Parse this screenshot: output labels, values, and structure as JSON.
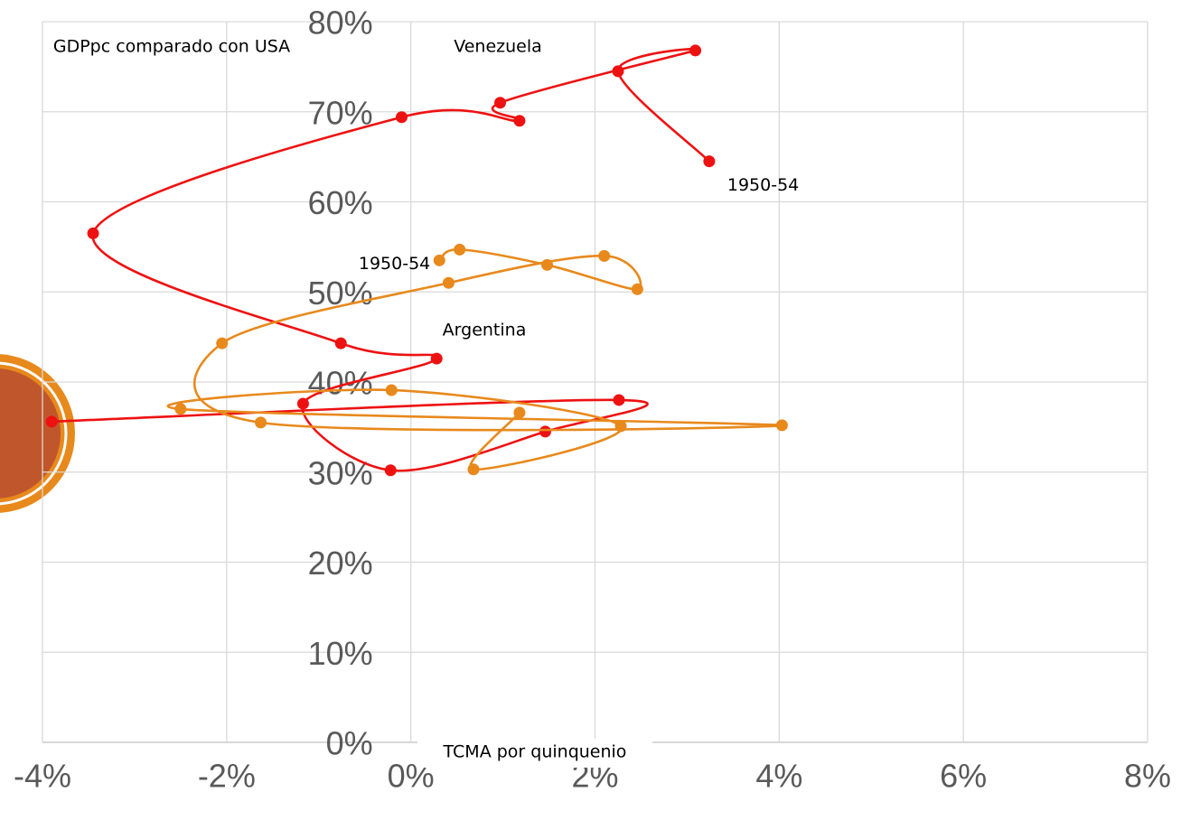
{
  "chart_data": {
    "type": "scatter-smooth",
    "xlabel": "TCMA por quinquenio",
    "ylabel": "GDPpc comparado con USA",
    "xlim": [
      -4,
      8
    ],
    "ylim": [
      0,
      80
    ],
    "xticks": [
      {
        "value": -4,
        "label": "-4%"
      },
      {
        "value": -2,
        "label": "-2%"
      },
      {
        "value": 0,
        "label": "0%"
      },
      {
        "value": 2,
        "label": "2%"
      },
      {
        "value": 4,
        "label": "4%"
      },
      {
        "value": 6,
        "label": "6%"
      },
      {
        "value": 8,
        "label": "8%"
      }
    ],
    "yticks": [
      {
        "value": 0,
        "label": "0%"
      },
      {
        "value": 10,
        "label": "10%"
      },
      {
        "value": 20,
        "label": "20%"
      },
      {
        "value": 30,
        "label": "30%"
      },
      {
        "value": 40,
        "label": "40%"
      },
      {
        "value": 50,
        "label": "50%"
      },
      {
        "value": 60,
        "label": "60%"
      },
      {
        "value": 70,
        "label": "70%"
      },
      {
        "value": 80,
        "label": "80%"
      }
    ],
    "grid": true,
    "series": [
      {
        "name": "Venezuela",
        "color": "#ee1111",
        "start_label": "1950-54",
        "x": [
          3.24,
          2.25,
          3.09,
          0.97,
          1.18,
          -0.1,
          -3.45,
          -0.76,
          0.28,
          -1.17,
          -0.22,
          1.46,
          2.26,
          -3.9
        ],
        "values": [
          64.5,
          74.5,
          76.8,
          71.0,
          69.0,
          69.4,
          56.5,
          44.3,
          42.6,
          37.6,
          30.2,
          34.5,
          38.0,
          35.6
        ]
      },
      {
        "name": "Argentina",
        "color": "#e8891c",
        "start_label": "1950-54",
        "x": [
          0.31,
          0.53,
          1.48,
          2.46,
          2.1,
          0.41,
          -2.05,
          -1.63,
          4.03,
          -2.5,
          -0.21,
          2.28,
          0.68,
          1.18
        ],
        "values": [
          53.5,
          54.7,
          53.0,
          50.3,
          54.0,
          51.0,
          44.3,
          35.5,
          35.2,
          37.0,
          39.1,
          35.1,
          30.3,
          36.6
        ]
      }
    ]
  }
}
